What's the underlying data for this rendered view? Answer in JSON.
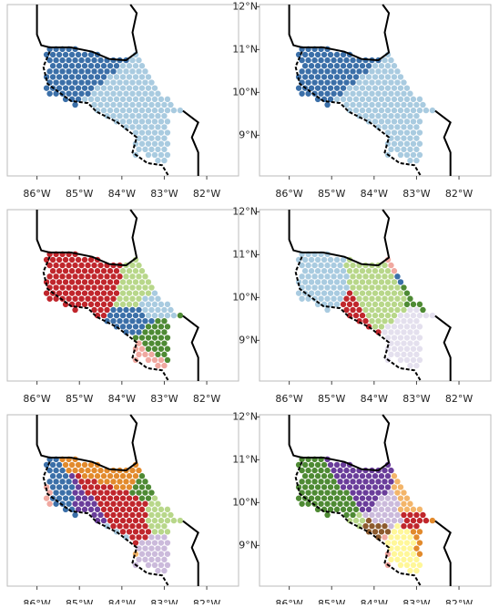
{
  "xlim": [
    -86.7,
    -81.25
  ],
  "ylim": [
    8.05,
    12.05
  ],
  "panels": [
    {
      "xticks": [
        {
          "value": -86,
          "label": "86°W"
        },
        {
          "value": -85,
          "label": "85°W"
        },
        {
          "value": -84,
          "label": "84°W"
        },
        {
          "value": -83,
          "label": "83°W"
        },
        {
          "value": -82,
          "label": "82°W"
        }
      ]
    },
    {
      "xticks": [
        {
          "value": -86,
          "label": "86°W"
        },
        {
          "value": -85,
          "label": "85°W"
        },
        {
          "value": -84,
          "label": "84°W"
        },
        {
          "value": -83,
          "label": "83°W"
        },
        {
          "value": -82,
          "label": "82°W"
        }
      ],
      "yticks": [
        {
          "value": 12,
          "label": "12°N"
        },
        {
          "value": 11,
          "label": "11°N"
        },
        {
          "value": 10,
          "label": "10°N"
        },
        {
          "value": 9,
          "label": "9°N"
        }
      ]
    },
    {
      "xticks": [
        {
          "value": -86,
          "label": "86°W"
        },
        {
          "value": -85,
          "label": "85°W"
        },
        {
          "value": -84,
          "label": "84°W"
        },
        {
          "value": -83,
          "label": "83°W"
        },
        {
          "value": -82,
          "label": "82°W"
        }
      ]
    },
    {
      "xticks": [
        {
          "value": -86,
          "label": "86°W"
        },
        {
          "value": -85,
          "label": "85°W"
        },
        {
          "value": -84,
          "label": "84°W"
        },
        {
          "value": -83,
          "label": "83°W"
        },
        {
          "value": -82,
          "label": "82°W"
        }
      ],
      "yticks": [
        {
          "value": 12,
          "label": "12°N"
        },
        {
          "value": 11,
          "label": "11°N"
        },
        {
          "value": 10,
          "label": "10°N"
        },
        {
          "value": 9,
          "label": "9°N"
        }
      ]
    },
    {
      "xticks": [
        {
          "value": -86,
          "label": "86°W"
        },
        {
          "value": -85,
          "label": "85°W"
        },
        {
          "value": -84,
          "label": "84°W"
        },
        {
          "value": -83,
          "label": "83°W"
        },
        {
          "value": -82,
          "label": "82°W"
        }
      ]
    },
    {
      "xticks": [
        {
          "value": -86,
          "label": "86°W"
        },
        {
          "value": -85,
          "label": "85°W"
        },
        {
          "value": -84,
          "label": "84°W"
        },
        {
          "value": -83,
          "label": "83°W"
        },
        {
          "value": -82,
          "label": "82°W"
        }
      ],
      "yticks": [
        {
          "value": 12,
          "label": "12°N"
        },
        {
          "value": 11,
          "label": "11°N"
        },
        {
          "value": 10,
          "label": "10°N"
        },
        {
          "value": 9,
          "label": "9°N"
        }
      ]
    }
  ]
}
